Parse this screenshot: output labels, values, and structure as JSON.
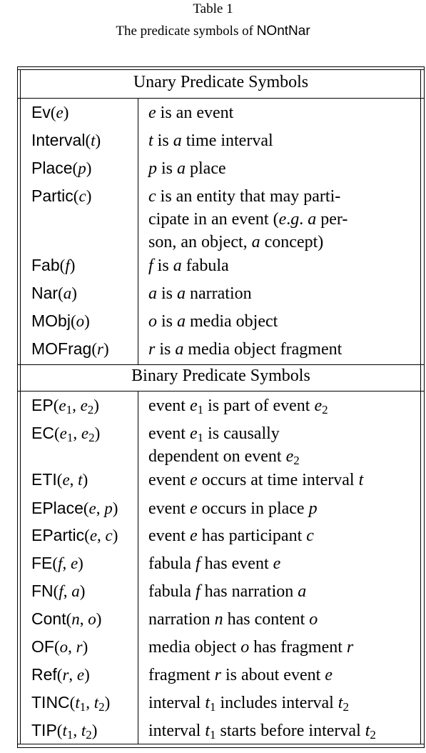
{
  "caption": {
    "table_label": "Table 1",
    "title_prefix": "The predicate symbols of ",
    "title_name": "NOntNar"
  },
  "unary": {
    "header": "Unary Predicate Symbols",
    "rows": [
      {
        "symbol": "Ev",
        "args": "e",
        "desc": [
          "e is an event"
        ]
      },
      {
        "symbol": "Interval",
        "args": "t",
        "desc": [
          "t is a time interval"
        ]
      },
      {
        "symbol": "Place",
        "args": "p",
        "desc": [
          "p is a place"
        ]
      },
      {
        "symbol": "Partic",
        "args": "c",
        "desc": [
          "c is an entity that may parti-",
          "cipate in an event (e.g. a per-",
          "son, an object, a concept)"
        ]
      },
      {
        "symbol": "Fab",
        "args": "f",
        "desc": [
          "f is a fabula"
        ]
      },
      {
        "symbol": "Nar",
        "args": "a",
        "desc": [
          "a is a narration"
        ]
      },
      {
        "symbol": "MObj",
        "args": "o",
        "desc": [
          "o is a media object"
        ]
      },
      {
        "symbol": "MOFrag",
        "args": "r",
        "desc": [
          "r is a media object fragment"
        ]
      }
    ]
  },
  "binary": {
    "header": "Binary Predicate Symbols",
    "rows": [
      {
        "symbol": "EP",
        "args": "e1, e2",
        "desc": [
          "event e1 is part of event e2"
        ]
      },
      {
        "symbol": "EC",
        "args": "e1, e2",
        "desc": [
          "event e1 is causally",
          "dependent on event e2"
        ]
      },
      {
        "symbol": "ETI",
        "args": "e, t",
        "desc": [
          "event e occurs at time interval t"
        ]
      },
      {
        "symbol": "EPlace",
        "args": "e, p",
        "desc": [
          "event e occurs in place p"
        ]
      },
      {
        "symbol": "EPartic",
        "args": "e, c",
        "desc": [
          "event e has participant c"
        ]
      },
      {
        "symbol": "FE",
        "args": "f, e",
        "desc": [
          "fabula f has event e"
        ]
      },
      {
        "symbol": "FN",
        "args": "f, a",
        "desc": [
          "fabula f has narration a"
        ]
      },
      {
        "symbol": "Cont",
        "args": "n, o",
        "desc": [
          "narration n has content o"
        ]
      },
      {
        "symbol": "OF",
        "args": "o, r",
        "desc": [
          "media object o has fragment r"
        ]
      },
      {
        "symbol": "Ref",
        "args": "r, e",
        "desc": [
          "fragment r is about event e"
        ]
      },
      {
        "symbol": "TINC",
        "args": "t1, t2",
        "desc": [
          "interval t1 includes interval t2"
        ]
      },
      {
        "symbol": "TIP",
        "args": "t1, t2",
        "desc": [
          "interval t1 starts before interval t2"
        ]
      }
    ]
  }
}
